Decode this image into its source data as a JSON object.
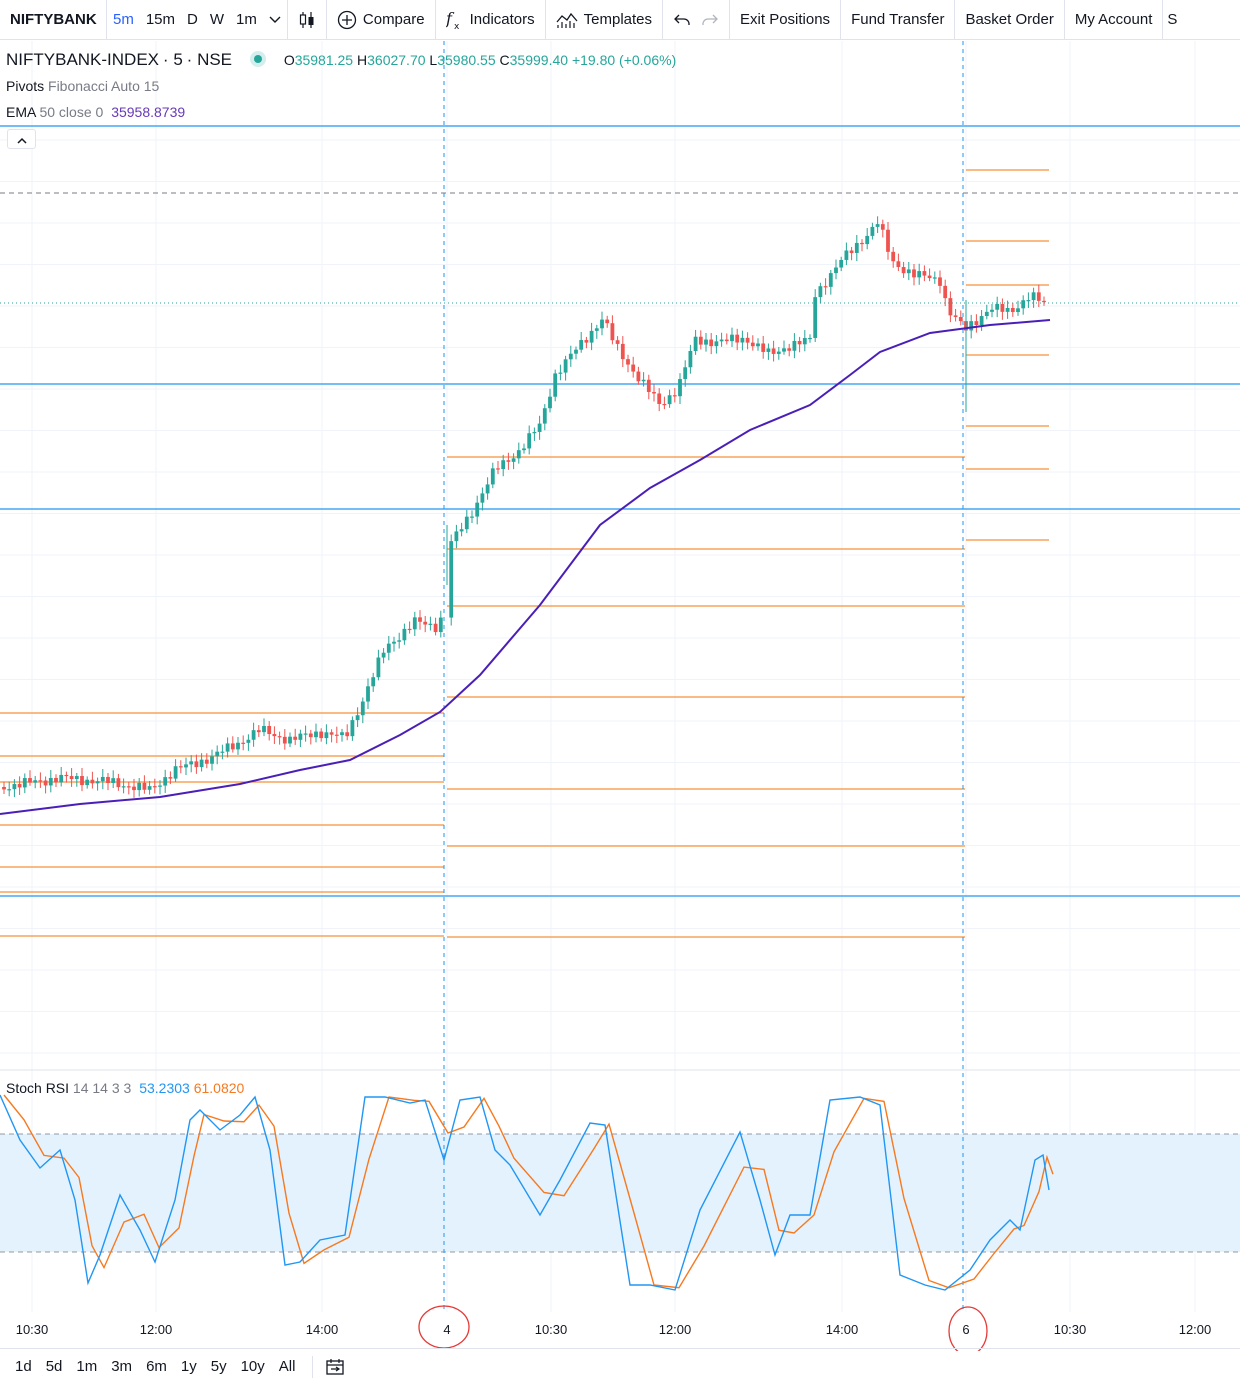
{
  "toolbar": {
    "symbol": "NIFTYBANK",
    "intervals": [
      "5m",
      "15m",
      "D",
      "W",
      "1m"
    ],
    "active_interval": "5m",
    "compare": "Compare",
    "indicators": "Indicators",
    "templates": "Templates",
    "exit_positions": "Exit Positions",
    "fund_transfer": "Fund Transfer",
    "basket_order": "Basket Order",
    "my_account": "My Account",
    "overflow": "S"
  },
  "legend": {
    "symbol": "NIFTYBANK-INDEX",
    "interval": "5",
    "exchange": "NSE",
    "o_label": "O",
    "o": "35981.25",
    "h_label": "H",
    "h": "36027.70",
    "l_label": "L",
    "l": "35980.55",
    "c_label": "C",
    "c": "35999.40",
    "change": "+19.80 (+0.06%)",
    "pivots_name": "Pivots",
    "pivots_params": "Fibonacci Auto 15",
    "ema_name": "EMA",
    "ema_params": "50 close 0",
    "ema_value": "35958.8739"
  },
  "rsi_legend": {
    "name": "Stoch RSI",
    "params": "14 14 3 3",
    "k": "53.2303",
    "d": "61.0820"
  },
  "time_axis": [
    "10:30",
    "12:00",
    "14:00",
    "4",
    "10:30",
    "12:00",
    "14:00",
    "6",
    "10:30",
    "12:00"
  ],
  "ranges": [
    "1d",
    "5d",
    "1m",
    "3m",
    "6m",
    "1y",
    "5y",
    "10y",
    "All"
  ],
  "colors": {
    "up": "#26a69a",
    "down": "#ef5350",
    "ema": "#4a1fb8",
    "pivot": "#f7913a",
    "hline": "#2196f3",
    "k_line": "#2196f3",
    "d_line": "#f7791f",
    "rsi_band": "#e3f2fd",
    "annotation": "#e53935"
  },
  "icons": [
    "chevron-down-icon",
    "candles-icon",
    "plus-circle-icon",
    "fx-icon",
    "templates-icon",
    "undo-icon",
    "redo-icon",
    "chevron-up-icon",
    "calendar-icon"
  ]
}
